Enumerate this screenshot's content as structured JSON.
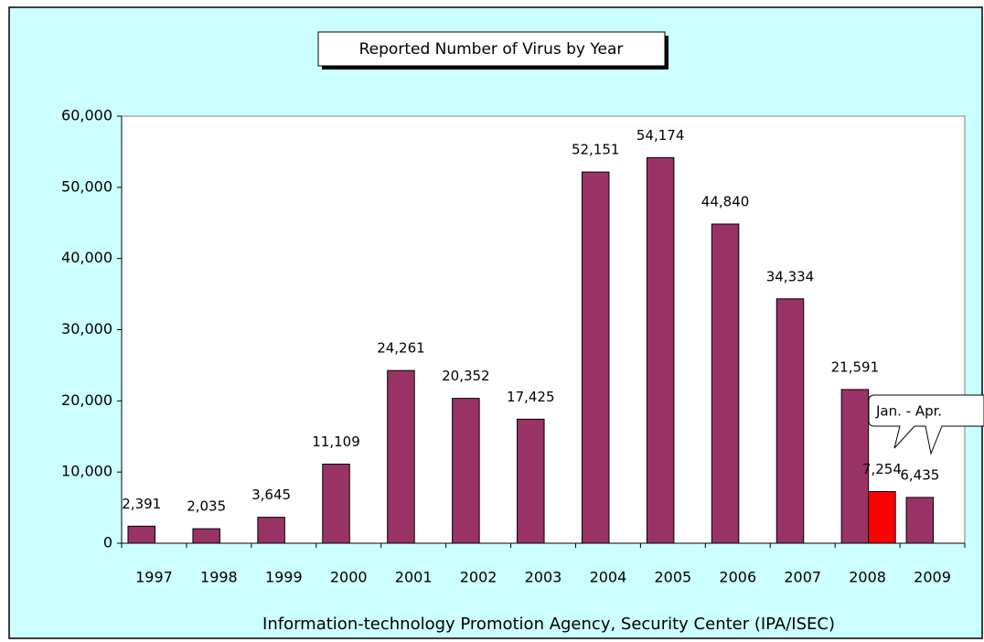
{
  "chart_data": {
    "type": "bar",
    "title": "Reported Number of Virus by Year",
    "source": "Information-technology Promotion Agency, Security Center (IPA/ISEC)",
    "annotation": "Jan. - Apr.",
    "categories": [
      "1997",
      "1998",
      "1999",
      "2000",
      "2001",
      "2002",
      "2003",
      "2004",
      "2005",
      "2006",
      "2007",
      "2008",
      "2009"
    ],
    "series": [
      {
        "color": "#993366",
        "values": [
          2391,
          2035,
          3645,
          11109,
          24261,
          20352,
          17425,
          52151,
          54174,
          44840,
          34334,
          21591,
          6435
        ],
        "value_labels": [
          "2,391",
          "2,035",
          "3,645",
          "11,109",
          "24,261",
          "20,352",
          "17,425",
          "52,151",
          "54,174",
          "44,840",
          "34,334",
          "21,591",
          "6,435"
        ]
      },
      {
        "color": "#ff0000",
        "values": [
          null,
          null,
          null,
          null,
          null,
          null,
          null,
          null,
          null,
          null,
          null,
          7254,
          null
        ],
        "value_labels": [
          null,
          null,
          null,
          null,
          null,
          null,
          null,
          null,
          null,
          null,
          null,
          "7,254",
          null
        ]
      }
    ],
    "ylim": [
      0,
      60000
    ],
    "yticks": [
      0,
      {
        "value": 10000,
        "label": "10,000"
      },
      {
        "value": 20000,
        "label": "20,000"
      },
      {
        "value": 30000,
        "label": "30,000"
      },
      {
        "value": 40000,
        "label": "40,000"
      },
      {
        "value": 50000,
        "label": "50,000"
      },
      {
        "value": 60000,
        "label": "60,000"
      }
    ],
    "grid": false
  }
}
